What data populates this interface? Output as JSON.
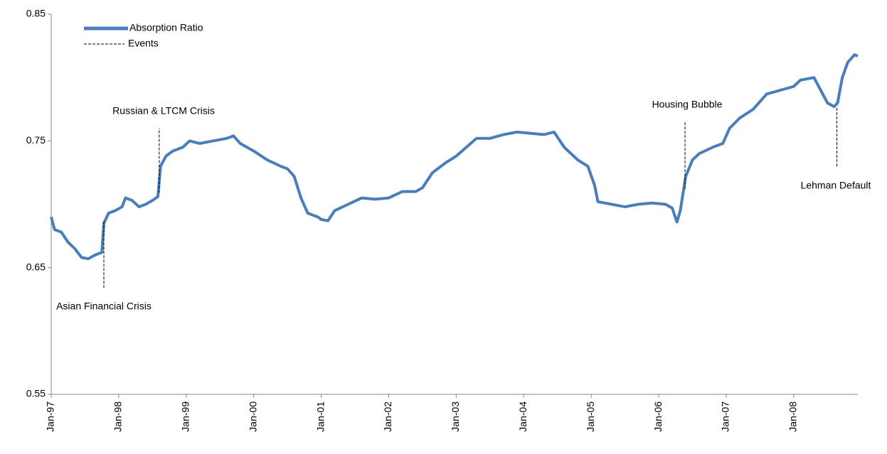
{
  "chart_data": {
    "type": "line",
    "series": [
      {
        "name": "Absorption Ratio",
        "color": "#4a7ebb",
        "x": [
          1997.0,
          1997.05,
          1997.15,
          1997.25,
          1997.35,
          1997.45,
          1997.55,
          1997.65,
          1997.75,
          1997.78,
          1997.85,
          1997.95,
          1998.05,
          1998.1,
          1998.2,
          1998.3,
          1998.4,
          1998.5,
          1998.58,
          1998.62,
          1998.7,
          1998.8,
          1998.95,
          1999.05,
          1999.2,
          1999.4,
          1999.6,
          1999.7,
          1999.8,
          2000.0,
          2000.2,
          2000.4,
          2000.5,
          2000.6,
          2000.7,
          2000.8,
          2000.95,
          2001.0,
          2001.1,
          2001.2,
          2001.4,
          2001.6,
          2001.8,
          2002.0,
          2002.2,
          2002.4,
          2002.5,
          2002.65,
          2002.85,
          2003.0,
          2003.15,
          2003.3,
          2003.5,
          2003.7,
          2003.9,
          2004.1,
          2004.3,
          2004.45,
          2004.6,
          2004.8,
          2004.95,
          2005.05,
          2005.1,
          2005.3,
          2005.5,
          2005.7,
          2005.9,
          2006.1,
          2006.2,
          2006.27,
          2006.32,
          2006.4,
          2006.5,
          2006.6,
          2006.8,
          2006.95,
          2007.05,
          2007.2,
          2007.4,
          2007.6,
          2007.8,
          2008.0,
          2008.1,
          2008.3,
          2008.4,
          2008.5,
          2008.6,
          2008.65,
          2008.72,
          2008.8,
          2008.9,
          2008.95
        ],
        "values": [
          0.69,
          0.68,
          0.678,
          0.67,
          0.665,
          0.658,
          0.657,
          0.66,
          0.662,
          0.685,
          0.693,
          0.695,
          0.698,
          0.705,
          0.703,
          0.698,
          0.7,
          0.703,
          0.706,
          0.73,
          0.738,
          0.742,
          0.745,
          0.75,
          0.748,
          0.75,
          0.752,
          0.754,
          0.748,
          0.742,
          0.735,
          0.73,
          0.728,
          0.722,
          0.705,
          0.693,
          0.69,
          0.688,
          0.687,
          0.695,
          0.7,
          0.705,
          0.704,
          0.705,
          0.71,
          0.71,
          0.713,
          0.725,
          0.733,
          0.738,
          0.745,
          0.752,
          0.752,
          0.755,
          0.757,
          0.756,
          0.755,
          0.757,
          0.745,
          0.735,
          0.73,
          0.715,
          0.702,
          0.7,
          0.698,
          0.7,
          0.701,
          0.7,
          0.697,
          0.686,
          0.695,
          0.722,
          0.735,
          0.74,
          0.745,
          0.748,
          0.76,
          0.768,
          0.775,
          0.787,
          0.79,
          0.793,
          0.798,
          0.8,
          0.79,
          0.78,
          0.777,
          0.78,
          0.8,
          0.812,
          0.818,
          0.817
        ]
      }
    ],
    "events": {
      "name": "Events",
      "items": [
        {
          "label": "Asian Financial Crisis",
          "x": 1997.78,
          "from": 0.634,
          "to": 0.687
        },
        {
          "label": "Russian & LTCM Crisis",
          "x": 1998.6,
          "from": 0.709,
          "to": 0.76
        },
        {
          "label": "Housing Bubble",
          "x": 2006.39,
          "from": 0.712,
          "to": 0.765
        },
        {
          "label": "Lehman Default",
          "x": 2008.64,
          "from": 0.73,
          "to": 0.777
        }
      ]
    },
    "xlim": [
      1997,
      2008.95
    ],
    "xticks": [
      {
        "value": 1997,
        "label": "Jan-97"
      },
      {
        "value": 1998,
        "label": "Jan-98"
      },
      {
        "value": 1999,
        "label": "Jan-99"
      },
      {
        "value": 2000,
        "label": "Jan-00"
      },
      {
        "value": 2001,
        "label": "Jan-01"
      },
      {
        "value": 2002,
        "label": "Jan-02"
      },
      {
        "value": 2003,
        "label": "Jan-03"
      },
      {
        "value": 2004,
        "label": "Jan-04"
      },
      {
        "value": 2005,
        "label": "Jan-05"
      },
      {
        "value": 2006,
        "label": "Jan-06"
      },
      {
        "value": 2007,
        "label": "Jan-07"
      },
      {
        "value": 2008,
        "label": "Jan-08"
      }
    ],
    "ylim": [
      0.55,
      0.85
    ],
    "yticks": [
      0.55,
      0.65,
      0.75,
      0.85
    ],
    "grid": false
  }
}
